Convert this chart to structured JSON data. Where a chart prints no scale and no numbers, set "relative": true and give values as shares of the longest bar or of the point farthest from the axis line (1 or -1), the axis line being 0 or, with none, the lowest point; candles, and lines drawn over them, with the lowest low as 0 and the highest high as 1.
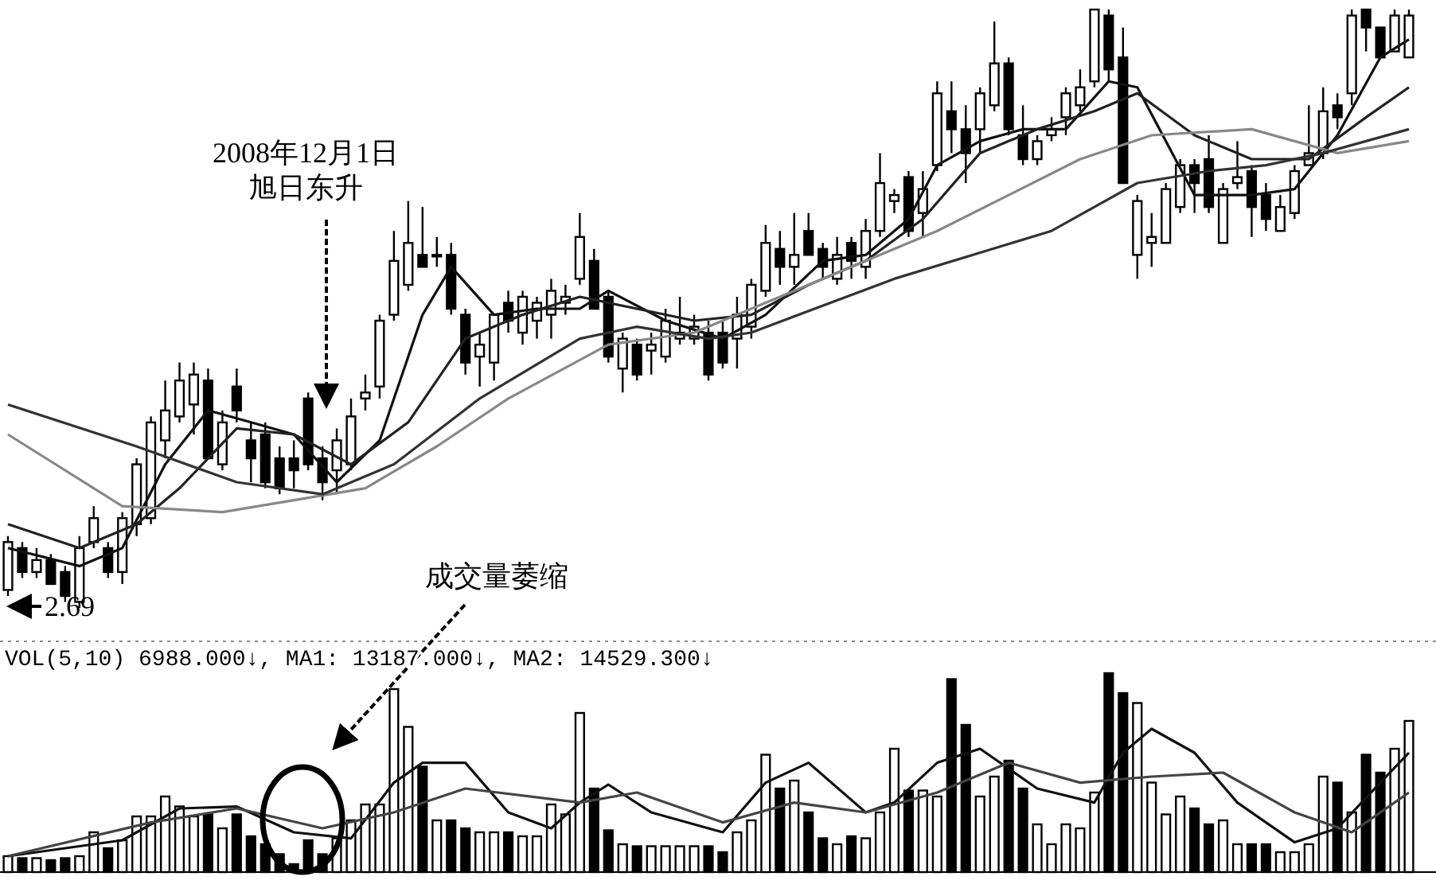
{
  "chart_data": [
    {
      "type": "candlestick",
      "relative": true,
      "categories": [
        null,
        null,
        null,
        null,
        null,
        null,
        null,
        null,
        null,
        null,
        null,
        null,
        null,
        null,
        null,
        null,
        null,
        null,
        null,
        null,
        null,
        null,
        null,
        null,
        null,
        null,
        null,
        null,
        null,
        null,
        null,
        null,
        null,
        null,
        null,
        null,
        null,
        null,
        null,
        null,
        null,
        null,
        null,
        null,
        null,
        null,
        null,
        null,
        null,
        null,
        null,
        null,
        null,
        null,
        null,
        null,
        null,
        null,
        null,
        null,
        null,
        null,
        null,
        null,
        null,
        null,
        null,
        null,
        null,
        null,
        null,
        null,
        null,
        null,
        null,
        null,
        null,
        null,
        null,
        null,
        null,
        null,
        null,
        null,
        null,
        null,
        null,
        null,
        null,
        null,
        null,
        null,
        null,
        null,
        null,
        null,
        null,
        null,
        null
      ],
      "ohlc": [
        [
          0.03,
          0.12,
          0.02,
          0.11
        ],
        [
          0.1,
          0.11,
          0.05,
          0.06
        ],
        [
          0.06,
          0.1,
          0.05,
          0.08
        ],
        [
          0.08,
          0.09,
          0.04,
          0.04
        ],
        [
          0.06,
          0.07,
          0.01,
          0.02
        ],
        [
          0.01,
          0.12,
          0,
          0.1
        ],
        [
          0.11,
          0.17,
          0.1,
          0.15
        ],
        [
          0.1,
          0.11,
          0.05,
          0.06
        ],
        [
          0.06,
          0.16,
          0.04,
          0.15
        ],
        [
          0.14,
          0.25,
          0.12,
          0.24
        ],
        [
          0.15,
          0.32,
          0.14,
          0.31
        ],
        [
          0.28,
          0.38,
          0.25,
          0.33
        ],
        [
          0.32,
          0.41,
          0.31,
          0.38
        ],
        [
          0.34,
          0.41,
          0.29,
          0.39
        ],
        [
          0.38,
          0.4,
          0.25,
          0.25
        ],
        [
          0.24,
          0.33,
          0.23,
          0.31
        ],
        [
          0.37,
          0.4,
          0.31,
          0.33
        ],
        [
          0.28,
          0.31,
          0.21,
          0.25
        ],
        [
          0.29,
          0.31,
          0.2,
          0.21
        ],
        [
          0.25,
          0.27,
          0.19,
          0.2
        ],
        [
          0.25,
          0.28,
          0.2,
          0.23
        ],
        [
          0.35,
          0.36,
          0.23,
          0.24
        ],
        [
          0.25,
          0.27,
          0.18,
          0.21
        ],
        [
          0.23,
          0.3,
          0.19,
          0.28
        ],
        [
          0.24,
          0.35,
          0.23,
          0.32
        ],
        [
          0.35,
          0.39,
          0.33,
          0.36
        ],
        [
          0.37,
          0.49,
          0.35,
          0.48
        ],
        [
          0.49,
          0.63,
          0.48,
          0.58
        ],
        [
          0.54,
          0.68,
          0.53,
          0.61
        ],
        [
          0.59,
          0.67,
          0.57,
          0.57
        ],
        [
          0.59,
          0.62,
          0.57,
          0.59
        ],
        [
          0.59,
          0.61,
          0.49,
          0.5
        ],
        [
          0.49,
          0.5,
          0.39,
          0.41
        ],
        [
          0.42,
          0.46,
          0.37,
          0.44
        ],
        [
          0.41,
          0.49,
          0.38,
          0.49
        ],
        [
          0.51,
          0.53,
          0.46,
          0.48
        ],
        [
          0.46,
          0.53,
          0.44,
          0.52
        ],
        [
          0.48,
          0.52,
          0.45,
          0.51
        ],
        [
          0.49,
          0.55,
          0.45,
          0.53
        ],
        [
          0.51,
          0.54,
          0.49,
          0.52
        ],
        [
          0.55,
          0.66,
          0.54,
          0.62
        ],
        [
          0.58,
          0.6,
          0.5,
          0.5
        ],
        [
          0.52,
          0.53,
          0.41,
          0.42
        ],
        [
          0.4,
          0.46,
          0.36,
          0.45
        ],
        [
          0.44,
          0.45,
          0.38,
          0.39
        ],
        [
          0.43,
          0.46,
          0.39,
          0.44
        ],
        [
          0.42,
          0.5,
          0.41,
          0.48
        ],
        [
          0.45,
          0.52,
          0.44,
          0.46
        ],
        [
          0.45,
          0.49,
          0.44,
          0.47
        ],
        [
          0.46,
          0.48,
          0.38,
          0.39
        ],
        [
          0.46,
          0.48,
          0.4,
          0.41
        ],
        [
          0.45,
          0.52,
          0.4,
          0.49
        ],
        [
          0.47,
          0.55,
          0.45,
          0.54
        ],
        [
          0.53,
          0.64,
          0.52,
          0.61
        ],
        [
          0.6,
          0.63,
          0.54,
          0.57
        ],
        [
          0.57,
          0.66,
          0.54,
          0.59
        ],
        [
          0.63,
          0.66,
          0.59,
          0.59
        ],
        [
          0.6,
          0.61,
          0.55,
          0.57
        ],
        [
          0.55,
          0.62,
          0.54,
          0.59
        ],
        [
          0.61,
          0.62,
          0.55,
          0.58
        ],
        [
          0.57,
          0.65,
          0.55,
          0.63
        ],
        [
          0.63,
          0.76,
          0.62,
          0.71
        ],
        [
          0.68,
          0.7,
          0.66,
          0.69
        ],
        [
          0.72,
          0.73,
          0.62,
          0.63
        ],
        [
          0.66,
          0.73,
          0.62,
          0.7
        ],
        [
          0.74,
          0.88,
          0.73,
          0.86
        ],
        [
          0.83,
          0.88,
          0.76,
          0.8
        ],
        [
          0.8,
          0.84,
          0.71,
          0.76
        ],
        [
          0.8,
          0.87,
          0.76,
          0.86
        ],
        [
          0.84,
          0.98,
          0.83,
          0.91
        ],
        [
          0.91,
          0.92,
          0.79,
          0.8
        ],
        [
          0.79,
          0.84,
          0.74,
          0.75
        ],
        [
          0.75,
          0.79,
          0.74,
          0.78
        ],
        [
          0.79,
          0.82,
          0.78,
          0.8
        ],
        [
          0.82,
          0.87,
          0.79,
          0.86
        ],
        [
          0.84,
          0.9,
          0.83,
          0.87
        ],
        [
          0.88,
          1,
          0.87,
          1
        ],
        [
          0.99,
          1,
          0.88,
          0.9
        ],
        [
          0.92,
          0.97,
          0.71,
          0.71
        ],
        [
          0.59,
          0.69,
          0.55,
          0.68
        ],
        [
          0.61,
          0.66,
          0.57,
          0.62
        ],
        [
          0.61,
          0.71,
          0.61,
          0.7
        ],
        [
          0.67,
          0.75,
          0.66,
          0.74
        ],
        [
          0.74,
          0.75,
          0.66,
          0.71
        ],
        [
          0.75,
          0.79,
          0.66,
          0.67
        ],
        [
          0.61,
          0.71,
          0.61,
          0.7
        ],
        [
          0.71,
          0.78,
          0.7,
          0.72
        ],
        [
          0.73,
          0.74,
          0.62,
          0.67
        ],
        [
          0.69,
          0.71,
          0.63,
          0.65
        ],
        [
          0.63,
          0.69,
          0.63,
          0.67
        ],
        [
          0.66,
          0.74,
          0.65,
          0.73
        ],
        [
          0.74,
          0.84,
          0.74,
          0.76
        ],
        [
          0.76,
          0.87,
          0.75,
          0.83
        ],
        [
          0.84,
          0.86,
          0.8,
          0.82
        ],
        [
          0.86,
          1,
          0.84,
          0.99
        ],
        [
          1,
          1,
          0.93,
          0.97
        ],
        [
          0.97,
          0.97,
          0.92,
          0.92
        ],
        [
          0.93,
          1,
          0.93,
          0.99
        ],
        [
          0.92,
          1,
          0.92,
          0.99
        ]
      ],
      "series": [
        {
          "type": "line",
          "color": "#111111",
          "values": [
            0.1,
            null,
            null,
            null,
            null,
            0.07,
            null,
            null,
            0.1,
            null,
            null,
            0.24,
            null,
            null,
            0.33,
            null,
            null,
            0.31,
            null,
            null,
            0.29,
            null,
            null,
            0.21,
            null,
            null,
            0.28,
            null,
            null,
            0.49,
            null,
            0.57,
            null,
            null,
            0.49,
            null,
            null,
            0.5,
            null,
            null,
            0.5,
            null,
            0.53,
            null,
            null,
            null,
            0.48,
            null,
            null,
            null,
            0.45,
            null,
            null,
            0.49,
            null,
            null,
            null,
            0.58,
            null,
            null,
            0.59,
            null,
            null,
            0.65,
            null,
            0.74,
            null,
            null,
            0.78,
            null,
            null,
            0.8,
            null,
            null,
            0.8,
            null,
            null,
            0.88,
            null,
            0.87,
            null,
            null,
            null,
            0.69,
            null,
            null,
            null,
            0.69,
            null,
            null,
            0.7,
            null,
            null,
            0.79,
            null,
            null,
            0.92,
            null,
            0.95
          ]
        },
        {
          "type": "line",
          "color": "#222222",
          "values": [
            0.14,
            null,
            null,
            null,
            null,
            0.1,
            null,
            null,
            null,
            0.14,
            null,
            null,
            0.2,
            null,
            null,
            null,
            0.3,
            null,
            null,
            null,
            0.29,
            null,
            null,
            null,
            0.24,
            null,
            null,
            null,
            0.31,
            null,
            null,
            null,
            0.45,
            null,
            null,
            null,
            0.49,
            null,
            null,
            null,
            0.52,
            null,
            null,
            null,
            0.5,
            null,
            null,
            null,
            0.48,
            null,
            null,
            null,
            0.49,
            null,
            null,
            null,
            0.54,
            null,
            null,
            null,
            0.58,
            null,
            null,
            null,
            0.65,
            null,
            null,
            null,
            0.76,
            null,
            null,
            null,
            0.8,
            null,
            null,
            null,
            0.83,
            null,
            null,
            0.86,
            null,
            null,
            null,
            0.79,
            null,
            null,
            null,
            0.75,
            null,
            null,
            null,
            0.75,
            null,
            null,
            null,
            0.82,
            null,
            null,
            0.87
          ]
        },
        {
          "type": "line",
          "color": "#888888",
          "values": [
            0.29,
            null,
            null,
            null,
            null,
            null,
            null,
            null,
            0.17,
            null,
            null,
            null,
            null,
            null,
            null,
            0.16,
            null,
            null,
            null,
            null,
            0.18,
            null,
            null,
            null,
            null,
            0.2,
            null,
            null,
            null,
            null,
            0.27,
            null,
            null,
            null,
            null,
            0.35,
            null,
            null,
            null,
            null,
            null,
            null,
            0.44,
            null,
            null,
            null,
            null,
            null,
            0.46,
            null,
            null,
            null,
            null,
            null,
            null,
            0.53,
            null,
            null,
            null,
            null,
            null,
            null,
            null,
            null,
            null,
            0.63,
            null,
            null,
            null,
            null,
            null,
            null,
            null,
            null,
            null,
            0.75,
            null,
            null,
            null,
            null,
            0.79,
            null,
            null,
            null,
            null,
            null,
            null,
            0.8,
            null,
            null,
            null,
            null,
            null,
            0.76,
            null,
            null,
            null,
            null,
            0.78
          ]
        },
        {
          "type": "line",
          "color": "#333333",
          "values": [
            0.34,
            null,
            null,
            null,
            null,
            null,
            null,
            null,
            null,
            0.27,
            null,
            null,
            null,
            null,
            null,
            null,
            0.21,
            null,
            null,
            null,
            null,
            null,
            0.19,
            null,
            null,
            null,
            null,
            0.24,
            null,
            null,
            null,
            null,
            null,
            0.35,
            null,
            null,
            null,
            null,
            null,
            null,
            0.45,
            null,
            null,
            null,
            0.47,
            null,
            null,
            null,
            null,
            0.45,
            null,
            null,
            0.46,
            null,
            null,
            null,
            null,
            null,
            null,
            null,
            null,
            null,
            0.55,
            null,
            null,
            null,
            null,
            null,
            null,
            null,
            null,
            null,
            null,
            0.63,
            null,
            null,
            null,
            null,
            null,
            0.71,
            null,
            null,
            null,
            null,
            0.73,
            null,
            null,
            null,
            0.74,
            null,
            null,
            null,
            0.76,
            null,
            null,
            null,
            null,
            null,
            0.8
          ]
        }
      ],
      "annotations": [
        "2008年12月1日",
        "旭日东升",
        "2.69"
      ]
    },
    {
      "type": "bar",
      "relative": true,
      "title": "VOL(5,10) 6988.000↓, MA1: 13187.000↓, MA2: 14529.300↓",
      "categories": [
        null,
        null,
        null,
        null,
        null,
        null,
        null,
        null,
        null,
        null,
        null,
        null,
        null,
        null,
        null,
        null,
        null,
        null,
        null,
        null,
        null,
        null,
        null,
        null,
        null,
        null,
        null,
        null,
        null,
        null,
        null,
        null,
        null,
        null,
        null,
        null,
        null,
        null,
        null,
        null,
        null,
        null,
        null,
        null,
        null,
        null,
        null,
        null,
        null,
        null,
        null,
        null,
        null,
        null,
        null,
        null,
        null,
        null,
        null,
        null,
        null,
        null,
        null,
        null,
        null,
        null,
        null,
        null,
        null,
        null,
        null,
        null,
        null,
        null,
        null,
        null,
        null,
        null,
        null,
        null,
        null,
        null,
        null,
        null,
        null,
        null,
        null,
        null,
        null,
        null,
        null,
        null,
        null,
        null,
        null,
        null,
        null,
        null,
        null
      ],
      "series": [
        {
          "values": [
            0.08,
            0.07,
            0.07,
            0.06,
            0.07,
            0.08,
            0.2,
            0.12,
            0.16,
            0.28,
            0.28,
            0.38,
            0.33,
            0.28,
            0.29,
            0.22,
            0.29,
            0.18,
            0.14,
            0.09,
            0.04,
            0.16,
            0.09,
            0.17,
            0.26,
            0.34,
            0.34,
            0.92,
            0.73,
            0.53,
            0.26,
            0.26,
            0.22,
            0.2,
            0.2,
            0.2,
            0.18,
            0.18,
            0.34,
            0.29,
            0.8,
            0.42,
            0.21,
            0.14,
            0.13,
            0.13,
            0.13,
            0.13,
            0.13,
            0.13,
            0.1,
            0.2,
            0.26,
            0.59,
            0.42,
            0.46,
            0.3,
            0.17,
            0.14,
            0.18,
            0.17,
            0.3,
            0.62,
            0.41,
            0.41,
            0.38,
            0.97,
            0.74,
            0.38,
            0.48,
            0.56,
            0.42,
            0.24,
            0.14,
            0.24,
            0.22,
            0.4,
            1,
            0.9,
            0.85,
            0.45,
            0.29,
            0.38,
            0.32,
            0.24,
            0.26,
            0.14,
            0.14,
            0.14,
            0.1,
            0.1,
            0.14,
            0.48,
            0.45,
            0.3,
            0.59,
            0.5,
            0.62,
            0.76
          ],
          "colors": [
            "#ffffff",
            "#000000",
            "#ffffff",
            "#000000",
            "#000000",
            "#ffffff",
            "#ffffff",
            "#000000",
            "#ffffff",
            "#ffffff",
            "#ffffff",
            "#ffffff",
            "#ffffff",
            "#ffffff",
            "#000000",
            "#ffffff",
            "#000000",
            "#000000",
            "#000000",
            "#000000",
            "#000000",
            "#000000",
            "#000000",
            "#ffffff",
            "#ffffff",
            "#ffffff",
            "#ffffff",
            "#ffffff",
            "#ffffff",
            "#000000",
            "#ffffff",
            "#000000",
            "#000000",
            "#ffffff",
            "#ffffff",
            "#000000",
            "#ffffff",
            "#ffffff",
            "#ffffff",
            "#ffffff",
            "#ffffff",
            "#000000",
            "#000000",
            "#ffffff",
            "#000000",
            "#ffffff",
            "#ffffff",
            "#ffffff",
            "#ffffff",
            "#000000",
            "#000000",
            "#ffffff",
            "#ffffff",
            "#ffffff",
            "#000000",
            "#ffffff",
            "#000000",
            "#000000",
            "#ffffff",
            "#000000",
            "#ffffff",
            "#ffffff",
            "#ffffff",
            "#000000",
            "#ffffff",
            "#ffffff",
            "#000000",
            "#000000",
            "#ffffff",
            "#ffffff",
            "#000000",
            "#000000",
            "#ffffff",
            "#ffffff",
            "#ffffff",
            "#ffffff",
            "#ffffff",
            "#000000",
            "#000000",
            "#ffffff",
            "#ffffff",
            "#ffffff",
            "#ffffff",
            "#000000",
            "#000000",
            "#ffffff",
            "#ffffff",
            "#000000",
            "#000000",
            "#ffffff",
            "#ffffff",
            "#ffffff",
            "#ffffff",
            "#000000",
            "#ffffff",
            "#000000",
            "#000000",
            "#ffffff",
            "#ffffff"
          ]
        },
        {
          "type": "line",
          "color": "#111111",
          "values": [
            0.08,
            null,
            null,
            null,
            null,
            null,
            null,
            null,
            0.16,
            null,
            null,
            null,
            0.32,
            null,
            null,
            null,
            0.33,
            null,
            null,
            null,
            0.2,
            null,
            null,
            null,
            0.17,
            null,
            null,
            0.45,
            null,
            0.55,
            null,
            null,
            0.55,
            null,
            null,
            0.3,
            null,
            null,
            0.22,
            null,
            0.35,
            null,
            0.44,
            null,
            null,
            0.3,
            null,
            null,
            null,
            null,
            0.2,
            null,
            null,
            0.45,
            null,
            null,
            0.55,
            null,
            null,
            null,
            0.3,
            null,
            0.35,
            null,
            null,
            0.55,
            null,
            null,
            0.62,
            null,
            null,
            null,
            0.42,
            null,
            null,
            null,
            0.35,
            null,
            0.6,
            null,
            0.72,
            null,
            null,
            0.6,
            null,
            null,
            0.35,
            null,
            null,
            null,
            0.15,
            null,
            null,
            0.22,
            null,
            null,
            0.45,
            null,
            0.6
          ]
        },
        {
          "type": "line",
          "color": "#444444",
          "values": [
            0.08,
            null,
            null,
            null,
            null,
            null,
            null,
            null,
            null,
            null,
            0.25,
            null,
            null,
            null,
            null,
            null,
            0.32,
            null,
            null,
            null,
            null,
            null,
            0.22,
            null,
            null,
            null,
            null,
            0.3,
            null,
            null,
            null,
            null,
            0.42,
            null,
            null,
            null,
            null,
            null,
            null,
            null,
            0.35,
            null,
            null,
            null,
            0.4,
            null,
            null,
            null,
            null,
            null,
            0.25,
            null,
            null,
            null,
            null,
            0.35,
            null,
            null,
            null,
            null,
            0.3,
            null,
            null,
            null,
            null,
            0.4,
            null,
            null,
            null,
            null,
            0.55,
            null,
            null,
            null,
            null,
            0.45,
            null,
            null,
            null,
            null,
            0.48,
            null,
            null,
            null,
            null,
            0.5,
            null,
            null,
            null,
            null,
            0.3,
            null,
            null,
            null,
            0.2,
            null,
            null,
            null,
            0.4
          ]
        }
      ],
      "annotations": [
        "成交量萎缩"
      ]
    }
  ]
}
